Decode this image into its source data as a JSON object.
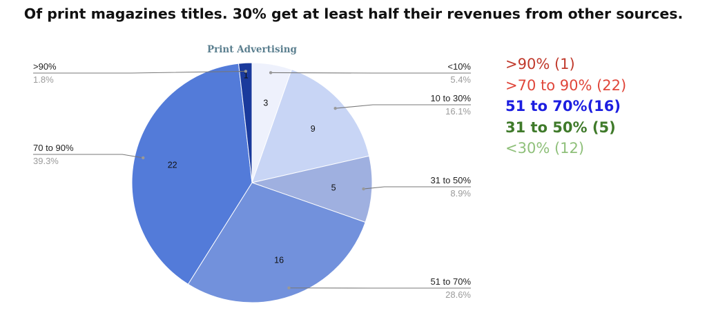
{
  "headline": "Of print magazines titles. 30% get at least half their revenues from other sources.",
  "chart_data": {
    "type": "pie",
    "title": "Print Advertising",
    "start": "12 o'clock, clockwise",
    "slices": [
      {
        "label": "<10%",
        "value": 3,
        "percent": "5.4%",
        "color": "#eef1fc",
        "side": "right"
      },
      {
        "label": "10 to 30%",
        "value": 9,
        "percent": "16.1%",
        "color": "#c8d5f5",
        "side": "right"
      },
      {
        "label": "31 to 50%",
        "value": 5,
        "percent": "8.9%",
        "color": "#9fb0e0",
        "side": "right"
      },
      {
        "label": "51 to 70%",
        "value": 16,
        "percent": "28.6%",
        "color": "#7291dc",
        "side": "right"
      },
      {
        "label": "70 to 90%",
        "value": 22,
        "percent": "39.3%",
        "color": "#537bd9",
        "side": "left"
      },
      {
        "label": ">90%",
        "value": 1,
        "percent": "1.8%",
        "color": "#1a3a9c",
        "side": "left"
      }
    ]
  },
  "legend": [
    {
      "text": ">90% (1)",
      "color": "#c0392b",
      "bold": false
    },
    {
      "text": ">70 to 90% (22)",
      "color": "#e0463a",
      "bold": false
    },
    {
      "text": "51 to 70%(16)",
      "color": "#1c1ee0",
      "bold": true
    },
    {
      "text": "31 to 50% (5)",
      "color": "#3f7a2a",
      "bold": true
    },
    {
      "text": "<30% (12)",
      "color": "#8fc07a",
      "bold": false
    }
  ]
}
